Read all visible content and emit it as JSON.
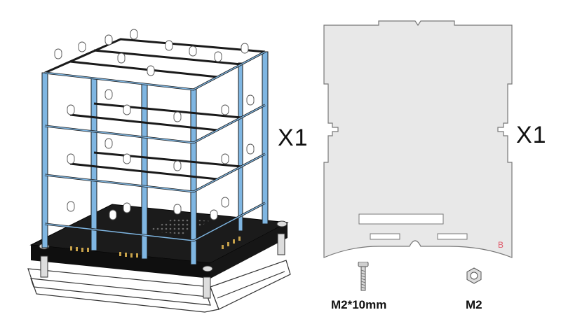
{
  "cube_assembly": {
    "quantity": "X1"
  },
  "acrylic_panel": {
    "quantity": "X1",
    "corner_mark": "B"
  },
  "screw": {
    "label": "M2*10mm"
  },
  "nut": {
    "label": "M2"
  }
}
